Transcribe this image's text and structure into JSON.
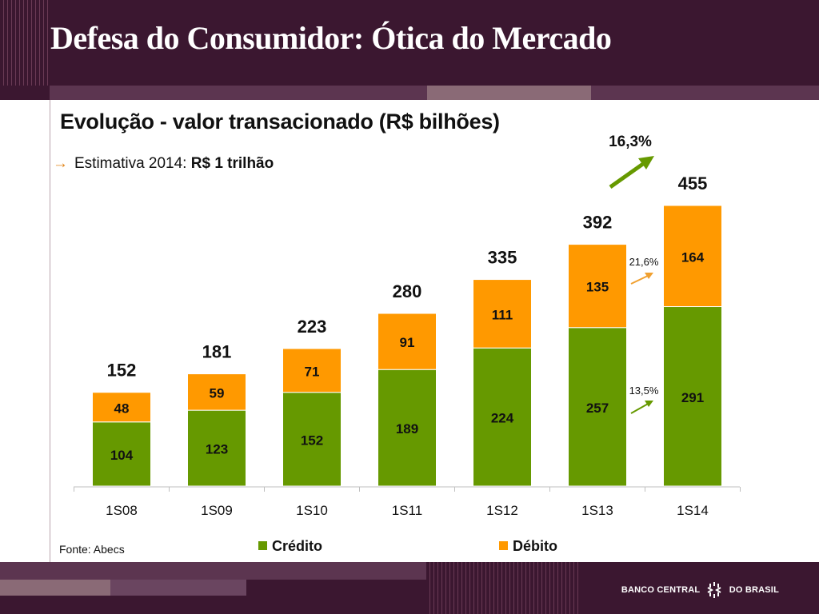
{
  "title": "Defesa do Consumidor: Ótica do Mercado",
  "subtitle": "Evolução - valor transacionado (R$ bilhões)",
  "estimate": {
    "prefix": "Estimativa 2014: ",
    "value": "R$ 1 trilhão"
  },
  "source": "Fonte: Abecs",
  "logo": {
    "left_text": "BANCO CENTRAL",
    "right_text": "DO BRASIL"
  },
  "colors": {
    "credito": "#669900",
    "debito": "#ff9900",
    "header": "#3b1730",
    "growth_arrow": "#669900",
    "debit_arrow": "#f0a030"
  },
  "chart_data": {
    "type": "bar",
    "stacked": true,
    "categories": [
      "1S08",
      "1S09",
      "1S10",
      "1S11",
      "1S12",
      "1S13",
      "1S14"
    ],
    "series": [
      {
        "name": "Crédito",
        "values": [
          104,
          123,
          152,
          189,
          224,
          257,
          291
        ]
      },
      {
        "name": "Débito",
        "values": [
          48,
          59,
          71,
          91,
          111,
          135,
          164
        ]
      }
    ],
    "totals": [
      152,
      181,
      223,
      280,
      335,
      392,
      455
    ],
    "ylim": [
      0,
      455
    ],
    "legend": "bottom",
    "grid": false,
    "annotations": [
      {
        "text": "16,3%",
        "kind": "total-growth"
      },
      {
        "text": "21,6%",
        "kind": "debito-growth"
      },
      {
        "text": "13,5%",
        "kind": "credito-growth"
      }
    ]
  }
}
